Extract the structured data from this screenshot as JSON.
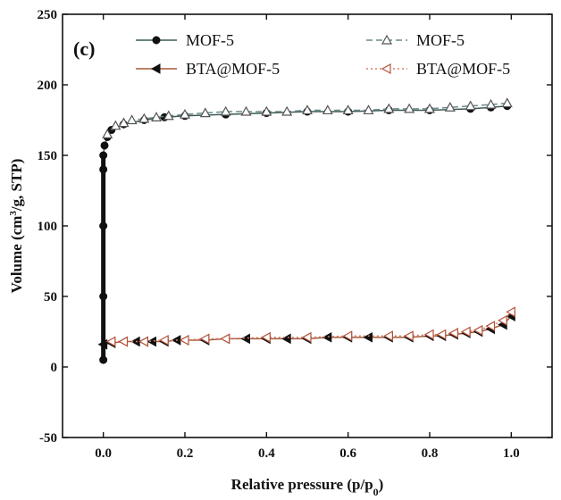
{
  "chart_data": {
    "type": "scatter",
    "panel_label": "(c)",
    "xlabel": "Relative pressure (p/p",
    "xlabel_sub": "0",
    "xlabel_tail": ")",
    "ylabel": "Volume (cm",
    "ylabel_sup": "3",
    "ylabel_tail": "/g, STP)",
    "xlim": [
      -0.1,
      1.1
    ],
    "ylim": [
      -50,
      250
    ],
    "xticks": [
      0.0,
      0.2,
      0.4,
      0.6,
      0.8,
      1.0
    ],
    "xtick_labels": [
      "0.0",
      "0.2",
      "0.4",
      "0.6",
      "0.8",
      "1.0"
    ],
    "yticks": [
      -50,
      0,
      50,
      100,
      150,
      200,
      250
    ],
    "ytick_labels": [
      "-50",
      "0",
      "50",
      "100",
      "150",
      "200",
      "250"
    ],
    "grid": false,
    "legend_position": "top",
    "series": [
      {
        "name": "MOF-5",
        "marker": "filled-circle",
        "line": "solid",
        "color": "#111111",
        "line_color": "#3d5a55",
        "points": [
          [
            0.0,
            5
          ],
          [
            0.0,
            50
          ],
          [
            0.0,
            100
          ],
          [
            0.0,
            140
          ],
          [
            0.0,
            150
          ],
          [
            0.003,
            157
          ],
          [
            0.01,
            163
          ],
          [
            0.02,
            168
          ],
          [
            0.05,
            172
          ],
          [
            0.1,
            175
          ],
          [
            0.15,
            177
          ],
          [
            0.2,
            178
          ],
          [
            0.3,
            179
          ],
          [
            0.4,
            180
          ],
          [
            0.5,
            181
          ],
          [
            0.6,
            181
          ],
          [
            0.7,
            182
          ],
          [
            0.8,
            182
          ],
          [
            0.9,
            183
          ],
          [
            0.95,
            184
          ],
          [
            0.99,
            185
          ]
        ]
      },
      {
        "name": "MOF-5",
        "marker": "open-triangle-up",
        "line": "dashed",
        "color": "#555555",
        "line_color": "#6a8a8a",
        "points": [
          [
            0.99,
            187
          ],
          [
            0.95,
            186
          ],
          [
            0.9,
            185
          ],
          [
            0.85,
            184
          ],
          [
            0.8,
            183
          ],
          [
            0.75,
            183
          ],
          [
            0.7,
            183
          ],
          [
            0.65,
            182
          ],
          [
            0.6,
            182
          ],
          [
            0.55,
            182
          ],
          [
            0.5,
            182
          ],
          [
            0.45,
            181
          ],
          [
            0.4,
            181
          ],
          [
            0.35,
            181
          ],
          [
            0.3,
            181
          ],
          [
            0.25,
            180
          ],
          [
            0.2,
            179
          ],
          [
            0.16,
            178
          ],
          [
            0.13,
            177
          ],
          [
            0.1,
            176
          ],
          [
            0.07,
            175
          ],
          [
            0.05,
            173
          ],
          [
            0.03,
            171
          ],
          [
            0.01,
            165
          ]
        ]
      },
      {
        "name": "BTA@MOF-5",
        "marker": "filled-triangle-left",
        "line": "solid",
        "color": "#111111",
        "line_color": "#a85a3c",
        "points": [
          [
            0.0,
            16
          ],
          [
            0.02,
            17
          ],
          [
            0.05,
            18
          ],
          [
            0.08,
            18
          ],
          [
            0.1,
            18
          ],
          [
            0.12,
            18
          ],
          [
            0.15,
            18
          ],
          [
            0.18,
            19
          ],
          [
            0.2,
            19
          ],
          [
            0.25,
            19
          ],
          [
            0.3,
            20
          ],
          [
            0.35,
            20
          ],
          [
            0.4,
            20
          ],
          [
            0.45,
            20
          ],
          [
            0.5,
            20
          ],
          [
            0.55,
            21
          ],
          [
            0.6,
            21
          ],
          [
            0.65,
            21
          ],
          [
            0.7,
            21
          ],
          [
            0.75,
            21
          ],
          [
            0.8,
            22
          ],
          [
            0.83,
            22
          ],
          [
            0.86,
            23
          ],
          [
            0.89,
            24
          ],
          [
            0.92,
            25
          ],
          [
            0.95,
            27
          ],
          [
            0.98,
            30
          ],
          [
            1.0,
            36
          ]
        ]
      },
      {
        "name": "BTA@MOF-5",
        "marker": "open-triangle-left",
        "line": "dotted",
        "color": "#b5533a",
        "line_color": "#d2806a",
        "points": [
          [
            1.0,
            39
          ],
          [
            0.98,
            33
          ],
          [
            0.95,
            29
          ],
          [
            0.92,
            26
          ],
          [
            0.89,
            25
          ],
          [
            0.86,
            24
          ],
          [
            0.83,
            23
          ],
          [
            0.8,
            23
          ],
          [
            0.75,
            22
          ],
          [
            0.7,
            22
          ],
          [
            0.6,
            22
          ],
          [
            0.5,
            21
          ],
          [
            0.4,
            21
          ],
          [
            0.3,
            20
          ],
          [
            0.25,
            20
          ],
          [
            0.2,
            19
          ],
          [
            0.15,
            19
          ],
          [
            0.1,
            18
          ],
          [
            0.05,
            18
          ],
          [
            0.02,
            18
          ]
        ]
      }
    ]
  }
}
